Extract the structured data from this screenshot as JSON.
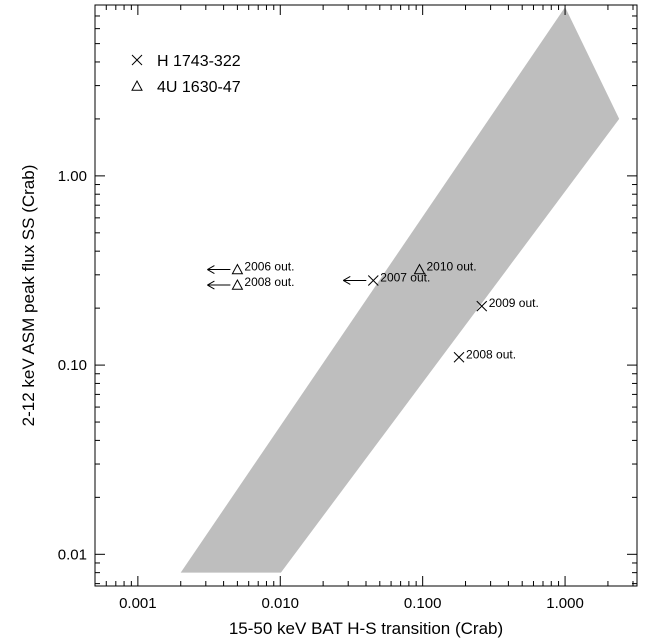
{
  "chart_data": {
    "type": "scatter",
    "xlabel": "15-50 keV BAT H-S transition (Crab)",
    "ylabel": "2-12 keV ASM peak flux SS (Crab)",
    "xscale": "log",
    "yscale": "log",
    "xlim": [
      0.0005,
      3.2
    ],
    "ylim": [
      0.0068,
      8.0
    ],
    "x_tick_labels": [
      {
        "value": 0.001,
        "label": "0.001"
      },
      {
        "value": 0.01,
        "label": "0.010"
      },
      {
        "value": 0.1,
        "label": "0.100"
      },
      {
        "value": 1.0,
        "label": "1.000"
      }
    ],
    "y_tick_labels": [
      {
        "value": 0.01,
        "label": "0.01"
      },
      {
        "value": 0.1,
        "label": "0.10"
      },
      {
        "value": 1.0,
        "label": "1.00"
      }
    ],
    "legend": {
      "position": "top-left",
      "entries": [
        {
          "marker": "x",
          "label": "H 1743-322"
        },
        {
          "marker": "triangle",
          "label": "4U 1630-47"
        }
      ]
    },
    "shaded_region": {
      "color": "#bebebe",
      "polygon": [
        [
          0.002,
          0.008
        ],
        [
          0.0101,
          0.008
        ],
        [
          2.4,
          2.0
        ],
        [
          1.0,
          7.8
        ]
      ]
    },
    "series": [
      {
        "name": "H 1743-322",
        "marker": "x",
        "points": [
          {
            "x": 0.045,
            "y": 0.28,
            "label": "2007 out.",
            "upper_limit_arrow": true
          },
          {
            "x": 0.26,
            "y": 0.205,
            "label": "2009 out.",
            "upper_limit_arrow": false
          },
          {
            "x": 0.18,
            "y": 0.11,
            "label": "2008 out.",
            "upper_limit_arrow": false
          }
        ]
      },
      {
        "name": "4U 1630-47",
        "marker": "triangle",
        "points": [
          {
            "x": 0.005,
            "y": 0.32,
            "label": "2006 out.",
            "upper_limit_arrow": true
          },
          {
            "x": 0.005,
            "y": 0.265,
            "label": "2008 out.",
            "upper_limit_arrow": true
          },
          {
            "x": 0.095,
            "y": 0.32,
            "label": "2010 out.",
            "upper_limit_arrow": false
          }
        ]
      }
    ]
  }
}
